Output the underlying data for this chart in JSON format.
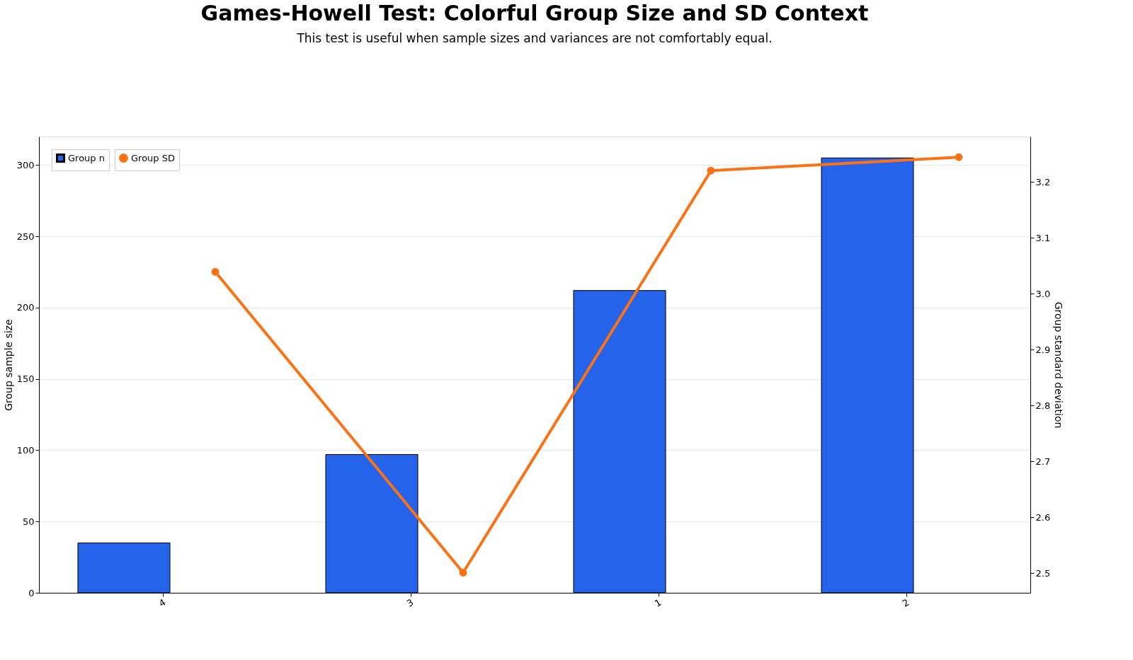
{
  "chart_data": {
    "type": "bar",
    "title": "Games-Howell Test: Colorful Group Size and SD Context",
    "subtitle": "This test is useful when sample sizes and variances are not comfortably equal.",
    "categories": [
      "4",
      "3",
      "1",
      "2"
    ],
    "series": [
      {
        "name": "Group n",
        "color": "#2563eb",
        "values": [
          35,
          97,
          212,
          305
        ]
      },
      {
        "name": "Group SD",
        "type": "line",
        "axis": "y2",
        "color": "#f97316",
        "values": [
          3.039,
          2.501,
          3.22,
          3.244
        ]
      }
    ],
    "ylabel": "Group sample size",
    "y2label": "Group standard deviation",
    "ylim": [
      0,
      320
    ],
    "yticks": [
      0,
      50,
      100,
      150,
      200,
      250,
      300
    ],
    "y2lim": [
      2.465,
      3.281
    ],
    "y2ticks": [
      2.5,
      2.6,
      2.7,
      2.8,
      2.9,
      {
        "value": 3.0,
        "label": "3.0"
      },
      3.1,
      3.2
    ],
    "grid": "y",
    "legend": "top left",
    "marker": "circle",
    "line_style": "solid"
  }
}
